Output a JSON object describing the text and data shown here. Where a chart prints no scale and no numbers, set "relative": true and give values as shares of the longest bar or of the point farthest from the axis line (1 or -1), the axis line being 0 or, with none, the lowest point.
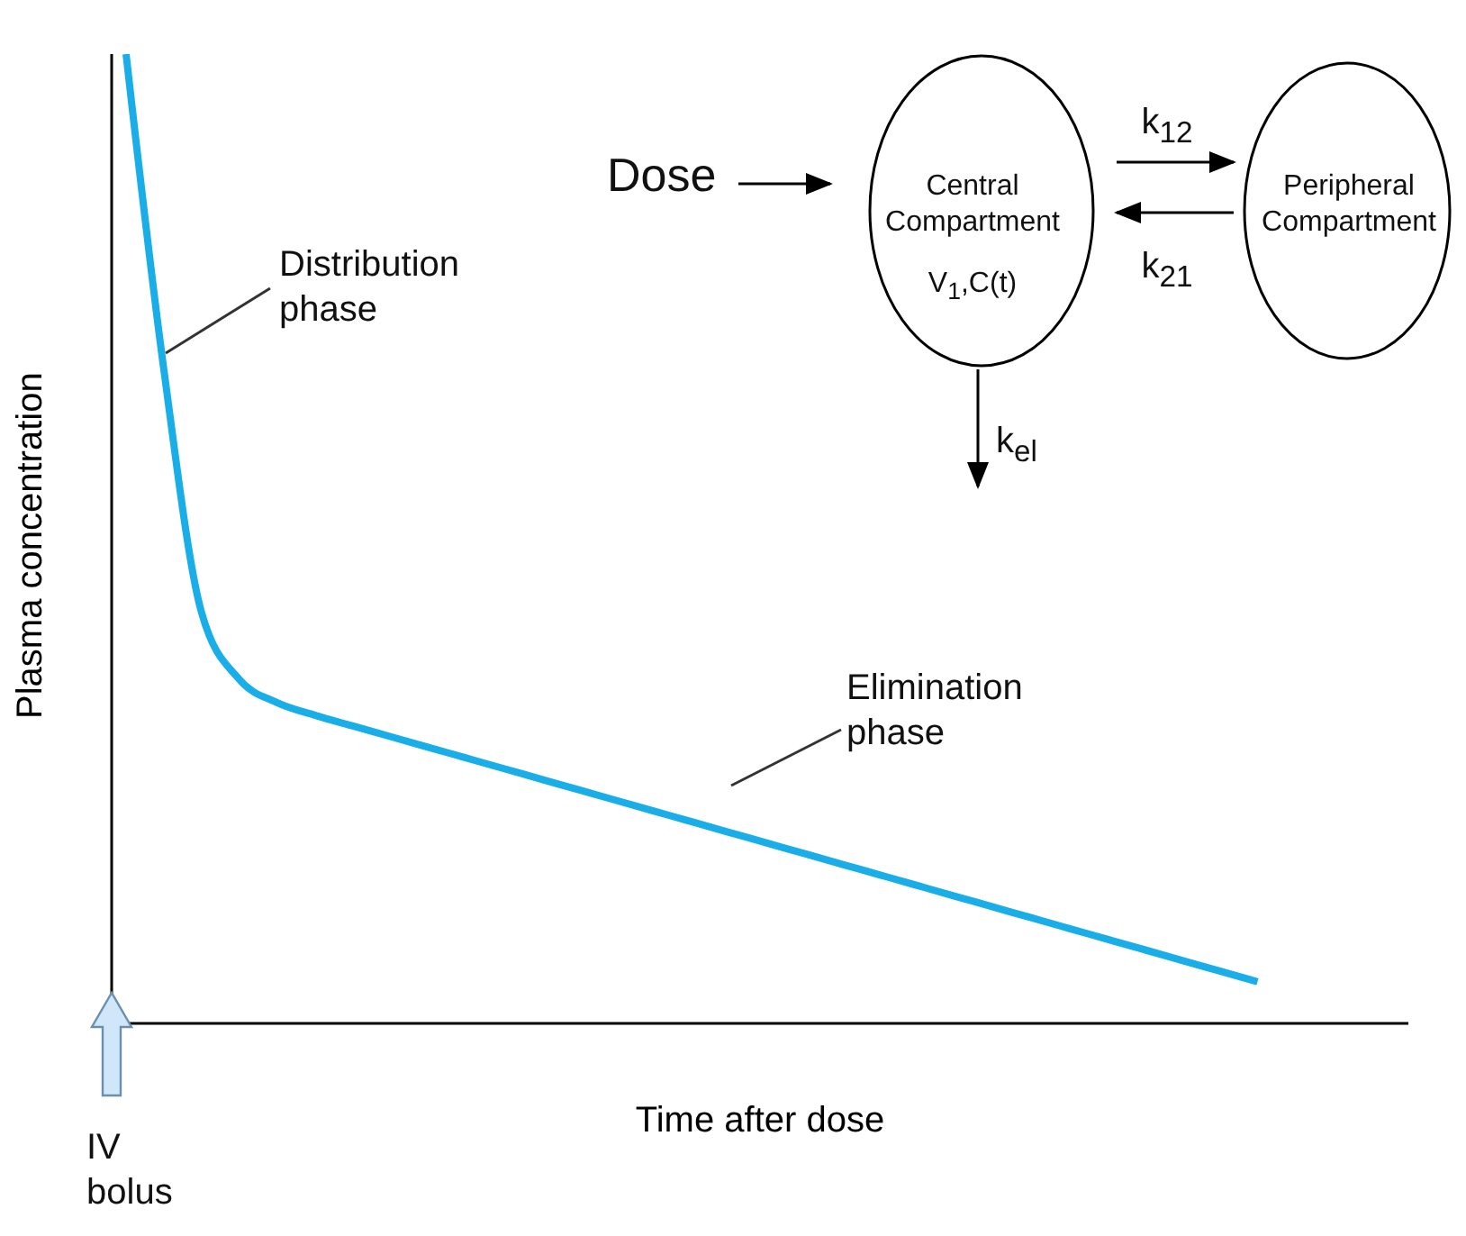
{
  "chart_data": {
    "type": "line",
    "relative": true,
    "marker": "none",
    "xlabel": "Time after dose",
    "ylabel": "Plasma concentration",
    "categories": [
      null,
      null,
      null,
      null,
      null,
      null,
      null,
      null,
      null,
      null,
      null,
      null,
      null,
      null,
      null,
      null,
      null,
      null,
      null,
      null,
      null,
      null,
      null,
      null,
      null,
      null,
      null,
      null,
      null,
      null,
      null,
      null,
      null,
      null,
      null
    ],
    "series": [
      {
        "color": "#1aaee8",
        "values": [
          1.0,
          0.675,
          0.424,
          0.355,
          0.331,
          0.318,
          0.307,
          0.296,
          0.285,
          0.274,
          0.263,
          0.252,
          0.241,
          0.23,
          0.219,
          0.208,
          0.197,
          0.186,
          0.175,
          0.164,
          0.153,
          0.142,
          0.131,
          0.12,
          0.109,
          0.098,
          0.087,
          0.076,
          0.065,
          0.054,
          0.043,
          null,
          null,
          null,
          null
        ]
      }
    ],
    "annotations": [
      "Distribution phase",
      "Elimination phase",
      "Dose",
      "Central Compartment",
      "V$_{1}$,C(t)",
      "k$_{12}$",
      "k$_{21}$",
      "Peripheral Compartment",
      "k$_{el}$",
      "IV bolus"
    ]
  }
}
